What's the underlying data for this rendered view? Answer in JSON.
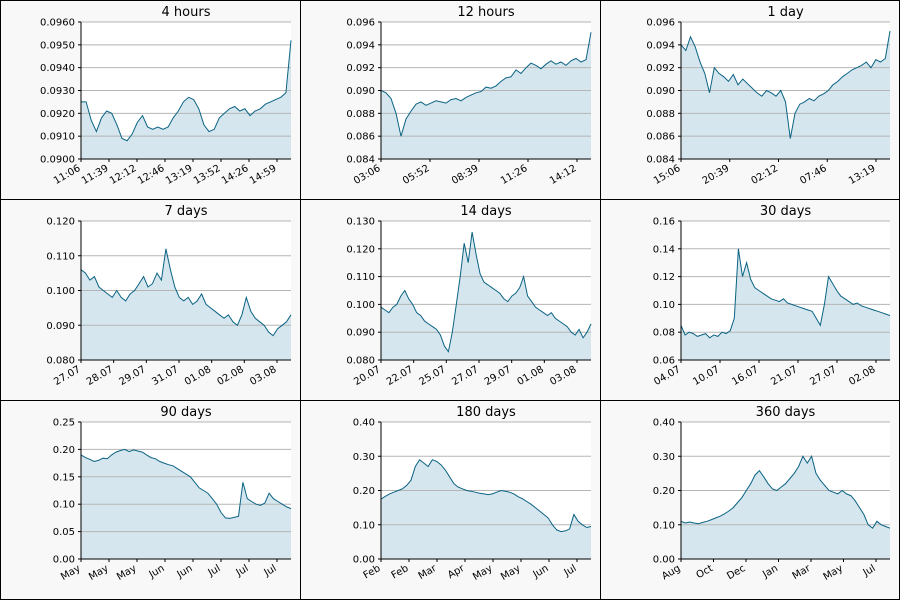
{
  "chart_data": [
    {
      "type": "area",
      "title": "4 hours",
      "xticks": [
        "11:06",
        "11:39",
        "12:12",
        "12:46",
        "13:19",
        "13:52",
        "14:26",
        "14:59"
      ],
      "yticks": [
        "0.0900",
        "0.0910",
        "0.0920",
        "0.0930",
        "0.0940",
        "0.0950",
        "0.0960"
      ],
      "ylim": [
        0.09,
        0.096
      ],
      "grid": true,
      "values": [
        0.0925,
        0.0925,
        0.0917,
        0.0912,
        0.0918,
        0.0921,
        0.092,
        0.0915,
        0.0909,
        0.0908,
        0.0911,
        0.0916,
        0.0919,
        0.0914,
        0.0913,
        0.0914,
        0.0913,
        0.0914,
        0.0918,
        0.0921,
        0.0925,
        0.0927,
        0.0926,
        0.0922,
        0.0915,
        0.0912,
        0.0913,
        0.0918,
        0.092,
        0.0922,
        0.0923,
        0.0921,
        0.0922,
        0.0919,
        0.0921,
        0.0922,
        0.0924,
        0.0925,
        0.0926,
        0.0927,
        0.0929,
        0.0952
      ]
    },
    {
      "type": "area",
      "title": "12 hours",
      "xticks": [
        "03:06",
        "05:52",
        "08:39",
        "11:26",
        "14:12"
      ],
      "yticks": [
        "0.084",
        "0.086",
        "0.088",
        "0.090",
        "0.092",
        "0.094",
        "0.096"
      ],
      "ylim": [
        0.084,
        0.096
      ],
      "grid": true,
      "values": [
        0.09,
        0.0898,
        0.0893,
        0.088,
        0.086,
        0.0875,
        0.0882,
        0.0888,
        0.089,
        0.0887,
        0.0889,
        0.0891,
        0.089,
        0.0889,
        0.0892,
        0.0893,
        0.0891,
        0.0894,
        0.0896,
        0.0898,
        0.0899,
        0.0903,
        0.0902,
        0.0904,
        0.0908,
        0.0911,
        0.0912,
        0.0918,
        0.0915,
        0.092,
        0.0924,
        0.0922,
        0.0919,
        0.0923,
        0.0926,
        0.0923,
        0.0925,
        0.0922,
        0.0926,
        0.0928,
        0.0925,
        0.0927,
        0.0951
      ]
    },
    {
      "type": "area",
      "title": "1 day",
      "xticks": [
        "15:06",
        "20:39",
        "02:12",
        "07:46",
        "13:19"
      ],
      "yticks": [
        "0.084",
        "0.086",
        "0.088",
        "0.090",
        "0.092",
        "0.094",
        "0.096"
      ],
      "ylim": [
        0.084,
        0.096
      ],
      "grid": true,
      "values": [
        0.094,
        0.0935,
        0.0947,
        0.0938,
        0.0925,
        0.0915,
        0.0898,
        0.092,
        0.0915,
        0.0912,
        0.0908,
        0.0914,
        0.0905,
        0.091,
        0.0906,
        0.0902,
        0.0898,
        0.0895,
        0.09,
        0.0898,
        0.0895,
        0.09,
        0.089,
        0.0858,
        0.088,
        0.0888,
        0.089,
        0.0893,
        0.0891,
        0.0895,
        0.0897,
        0.09,
        0.0905,
        0.0908,
        0.0912,
        0.0915,
        0.0918,
        0.092,
        0.0922,
        0.0925,
        0.092,
        0.0927,
        0.0925,
        0.0928,
        0.0952
      ]
    },
    {
      "type": "area",
      "title": "7 days",
      "xticks": [
        "27.07",
        "28.07",
        "29.07",
        "31.07",
        "01.08",
        "02.08",
        "03.08"
      ],
      "yticks": [
        "0.080",
        "0.090",
        "0.100",
        "0.110",
        "0.120"
      ],
      "ylim": [
        0.08,
        0.12
      ],
      "grid": true,
      "values": [
        0.106,
        0.105,
        0.103,
        0.104,
        0.101,
        0.1,
        0.099,
        0.098,
        0.1,
        0.098,
        0.097,
        0.099,
        0.1,
        0.102,
        0.104,
        0.101,
        0.102,
        0.105,
        0.103,
        0.112,
        0.106,
        0.101,
        0.098,
        0.097,
        0.098,
        0.096,
        0.097,
        0.099,
        0.096,
        0.095,
        0.094,
        0.093,
        0.092,
        0.093,
        0.091,
        0.09,
        0.093,
        0.098,
        0.094,
        0.092,
        0.091,
        0.09,
        0.088,
        0.087,
        0.089,
        0.09,
        0.091,
        0.093
      ]
    },
    {
      "type": "area",
      "title": "14 days",
      "xticks": [
        "20.07",
        "22.07",
        "25.07",
        "27.07",
        "29.07",
        "01.08",
        "03.08"
      ],
      "yticks": [
        "0.080",
        "0.090",
        "0.100",
        "0.110",
        "0.120",
        "0.130"
      ],
      "ylim": [
        0.08,
        0.13
      ],
      "grid": true,
      "values": [
        0.099,
        0.098,
        0.097,
        0.099,
        0.1,
        0.103,
        0.105,
        0.102,
        0.1,
        0.097,
        0.096,
        0.094,
        0.093,
        0.092,
        0.091,
        0.089,
        0.085,
        0.083,
        0.09,
        0.1,
        0.11,
        0.122,
        0.115,
        0.126,
        0.118,
        0.111,
        0.108,
        0.107,
        0.106,
        0.105,
        0.104,
        0.102,
        0.101,
        0.103,
        0.104,
        0.106,
        0.11,
        0.103,
        0.101,
        0.099,
        0.098,
        0.097,
        0.096,
        0.097,
        0.095,
        0.094,
        0.093,
        0.092,
        0.09,
        0.089,
        0.091,
        0.088,
        0.09,
        0.093
      ]
    },
    {
      "type": "area",
      "title": "30 days",
      "xticks": [
        "04.07",
        "10.07",
        "16.07",
        "21.07",
        "27.07",
        "02.08"
      ],
      "yticks": [
        "0.06",
        "0.08",
        "0.10",
        "0.12",
        "0.14",
        "0.16"
      ],
      "ylim": [
        0.06,
        0.16
      ],
      "grid": true,
      "values": [
        0.085,
        0.078,
        0.08,
        0.079,
        0.077,
        0.078,
        0.079,
        0.076,
        0.078,
        0.077,
        0.08,
        0.079,
        0.081,
        0.09,
        0.14,
        0.12,
        0.13,
        0.118,
        0.112,
        0.11,
        0.108,
        0.106,
        0.104,
        0.103,
        0.102,
        0.104,
        0.101,
        0.1,
        0.099,
        0.098,
        0.097,
        0.096,
        0.095,
        0.09,
        0.085,
        0.1,
        0.12,
        0.115,
        0.11,
        0.106,
        0.104,
        0.102,
        0.1,
        0.101,
        0.099,
        0.098,
        0.097,
        0.096,
        0.095,
        0.094,
        0.093,
        0.092
      ]
    },
    {
      "type": "area",
      "title": "90 days",
      "xticks": [
        "May",
        "May",
        "May",
        "Jun",
        "Jun",
        "Jul",
        "Jul",
        "Jul"
      ],
      "yticks": [
        "0.00",
        "0.05",
        "0.10",
        "0.15",
        "0.20",
        "0.25"
      ],
      "ylim": [
        0,
        0.25
      ],
      "grid": true,
      "values": [
        0.19,
        0.185,
        0.182,
        0.178,
        0.18,
        0.184,
        0.183,
        0.19,
        0.195,
        0.198,
        0.2,
        0.196,
        0.199,
        0.197,
        0.195,
        0.19,
        0.185,
        0.183,
        0.178,
        0.175,
        0.172,
        0.17,
        0.165,
        0.16,
        0.155,
        0.15,
        0.14,
        0.13,
        0.125,
        0.12,
        0.11,
        0.1,
        0.085,
        0.075,
        0.074,
        0.076,
        0.078,
        0.14,
        0.11,
        0.105,
        0.1,
        0.098,
        0.102,
        0.12,
        0.11,
        0.105,
        0.1,
        0.095,
        0.092
      ]
    },
    {
      "type": "area",
      "title": "180 days",
      "xticks": [
        "Feb",
        "Feb",
        "Mar",
        "Apr",
        "May",
        "May",
        "Jun",
        "Jul"
      ],
      "yticks": [
        "0.00",
        "0.10",
        "0.20",
        "0.30",
        "0.40"
      ],
      "ylim": [
        0,
        0.4
      ],
      "grid": true,
      "values": [
        0.175,
        0.183,
        0.19,
        0.195,
        0.2,
        0.205,
        0.215,
        0.23,
        0.27,
        0.29,
        0.28,
        0.27,
        0.29,
        0.285,
        0.275,
        0.26,
        0.24,
        0.22,
        0.21,
        0.205,
        0.2,
        0.198,
        0.195,
        0.192,
        0.19,
        0.188,
        0.19,
        0.195,
        0.2,
        0.198,
        0.195,
        0.19,
        0.182,
        0.176,
        0.168,
        0.16,
        0.15,
        0.14,
        0.13,
        0.12,
        0.1,
        0.085,
        0.08,
        0.082,
        0.088,
        0.13,
        0.11,
        0.1,
        0.092,
        0.095
      ]
    },
    {
      "type": "area",
      "title": "360 days",
      "xticks": [
        "Aug",
        "Oct",
        "Dec",
        "Jan",
        "Mar",
        "May",
        "Jul"
      ],
      "yticks": [
        "0.00",
        "0.10",
        "0.20",
        "0.30",
        "0.40"
      ],
      "ylim": [
        0,
        0.4
      ],
      "grid": true,
      "values": [
        0.11,
        0.105,
        0.108,
        0.105,
        0.103,
        0.107,
        0.11,
        0.115,
        0.12,
        0.125,
        0.132,
        0.14,
        0.15,
        0.165,
        0.18,
        0.2,
        0.22,
        0.245,
        0.258,
        0.24,
        0.22,
        0.205,
        0.2,
        0.21,
        0.22,
        0.235,
        0.25,
        0.27,
        0.3,
        0.28,
        0.3,
        0.25,
        0.23,
        0.215,
        0.2,
        0.195,
        0.19,
        0.2,
        0.19,
        0.185,
        0.17,
        0.15,
        0.13,
        0.1,
        0.09,
        0.11,
        0.1,
        0.095,
        0.09
      ]
    }
  ]
}
